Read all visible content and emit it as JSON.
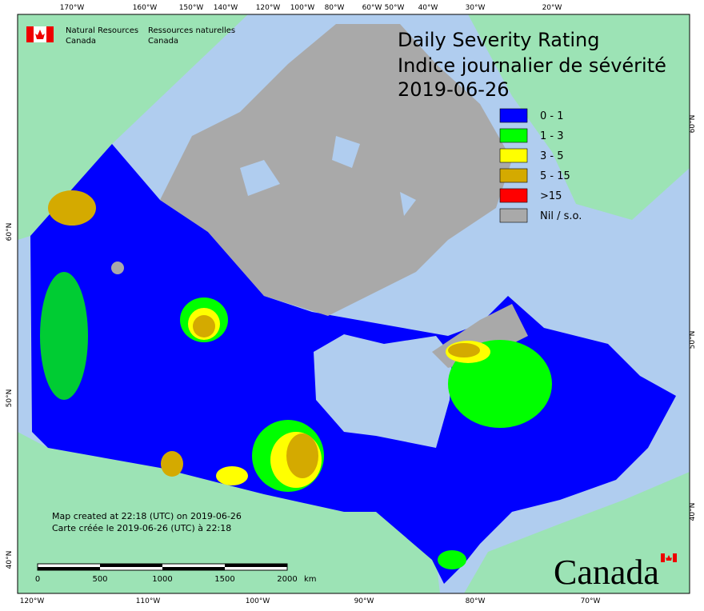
{
  "header": {
    "title_en": "Daily Severity Rating",
    "title_fr": "Indice journalier de sévérité",
    "date": "2019-06-26"
  },
  "agency": {
    "en_1": "Natural Resources",
    "en_2": "Canada",
    "fr_1": "Ressources naturelles",
    "fr_2": "Canada"
  },
  "legend": [
    {
      "label": "0 - 1",
      "color": "#0000ff"
    },
    {
      "label": "1 - 3",
      "color": "#00ff00"
    },
    {
      "label": "3 - 5",
      "color": "#ffff00"
    },
    {
      "label": "5 - 15",
      "color": "#d4aa00"
    },
    {
      "label": ">15",
      "color": "#ff0000"
    },
    {
      "label": "Nil / s.o.",
      "color": "#a9a9a9"
    }
  ],
  "graticule": {
    "top": [
      "170°W",
      "160°W",
      "150°W",
      "140°W",
      "120°W",
      "100°W",
      "80°W",
      "60°W",
      "50°W",
      "40°W",
      "30°W",
      "20°W"
    ],
    "bottom": [
      "120°W",
      "110°W",
      "100°W",
      "90°W",
      "80°W",
      "70°W"
    ],
    "left": [
      "60°N",
      "50°N",
      "40°N"
    ],
    "right": [
      "60°N",
      "50°N",
      "40°N"
    ]
  },
  "credits": {
    "line_1": "Map created at 22:18 (UTC) on 2019-06-26",
    "line_2": "Carte créée le 2019-06-26 (UTC) à 22:18"
  },
  "scale_bar": {
    "ticks": [
      0,
      500,
      1000,
      1500,
      2000
    ],
    "unit": "km"
  },
  "wordmark": "Canada"
}
